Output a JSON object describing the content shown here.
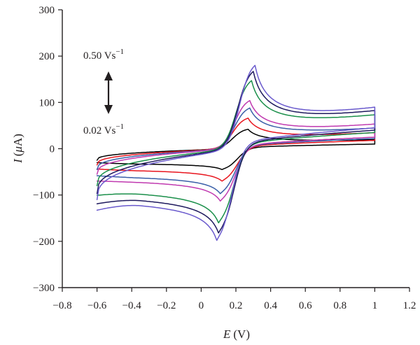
{
  "chart_data": {
    "type": "line",
    "title": "",
    "xlabel": {
      "symbol": "E",
      "unit": "(V)"
    },
    "ylabel": {
      "symbol": "I",
      "unit_open": "(",
      "unit_mu": "μ",
      "unit_rest": "A)"
    },
    "xlim": [
      -0.8,
      1.2
    ],
    "ylim": [
      -300,
      300
    ],
    "x_ticks": [
      -0.8,
      -0.6,
      -0.4,
      -0.2,
      0,
      0.2,
      0.4,
      0.6,
      0.8,
      1,
      1.2
    ],
    "x_tick_labels": [
      "−0.8",
      "−0.6",
      "−0.4",
      "−0.2",
      "0",
      "0.2",
      "0.4",
      "0.6",
      "0.8",
      "1",
      "1.2"
    ],
    "y_ticks": [
      -300,
      -200,
      -100,
      0,
      100,
      200,
      300
    ],
    "y_tick_labels": [
      "−300",
      "−200",
      "−100",
      "0",
      "100",
      "200",
      "300"
    ],
    "grid": false,
    "legend": "none",
    "annotations": {
      "high": {
        "value": "0.50 Vs",
        "sup": "−1"
      },
      "low": {
        "value": "0.02 Vs",
        "sup": "−1"
      }
    },
    "series": [
      {
        "color": "#000000",
        "anodic_peak": {
          "x": 0.27,
          "y": 42
        },
        "cathodic_peak": {
          "x": 0.12,
          "y": -45
        },
        "start_current": -25,
        "end_current": 12,
        "cathodic_hump": -28,
        "return_start": 10
      },
      {
        "color": "#e8141d",
        "anodic_peak": {
          "x": 0.27,
          "y": 66
        },
        "cathodic_peak": {
          "x": 0.12,
          "y": -70
        },
        "start_current": -35,
        "end_current": 24,
        "cathodic_hump": -38,
        "return_start": 18
      },
      {
        "color": "#3a5fa8",
        "anodic_peak": {
          "x": 0.28,
          "y": 88
        },
        "cathodic_peak": {
          "x": 0.11,
          "y": -97
        },
        "start_current": -45,
        "end_current": 30,
        "cathodic_hump": -48,
        "return_start": 22
      },
      {
        "color": "#c03ab0",
        "anodic_peak": {
          "x": 0.28,
          "y": 104
        },
        "cathodic_peak": {
          "x": 0.11,
          "y": -113
        },
        "start_current": -55,
        "end_current": 36,
        "cathodic_hump": -55,
        "return_start": 25
      },
      {
        "color": "#1a8f4a",
        "anodic_peak": {
          "x": 0.29,
          "y": 147
        },
        "cathodic_peak": {
          "x": 0.1,
          "y": -160
        },
        "start_current": -80,
        "end_current": 48,
        "cathodic_hump": -70,
        "return_start": 35
      },
      {
        "color": "#1f1a5e",
        "anodic_peak": {
          "x": 0.3,
          "y": 167
        },
        "cathodic_peak": {
          "x": 0.1,
          "y": -182
        },
        "start_current": -97,
        "end_current": 53,
        "cathodic_hump": -80,
        "return_start": 40
      },
      {
        "color": "#6a5acd",
        "anodic_peak": {
          "x": 0.31,
          "y": 180
        },
        "cathodic_peak": {
          "x": 0.09,
          "y": -198
        },
        "start_current": -110,
        "end_current": 58,
        "cathodic_hump": -88,
        "return_start": 45
      }
    ]
  }
}
